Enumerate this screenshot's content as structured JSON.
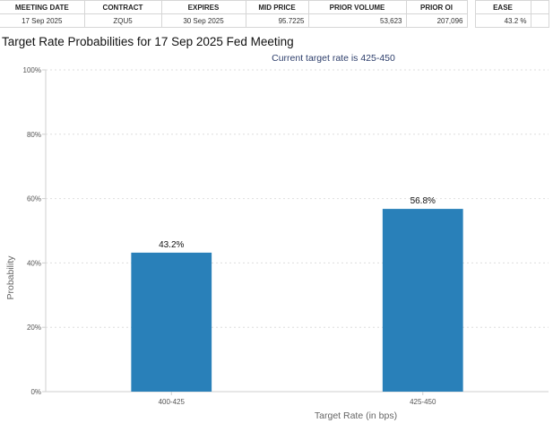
{
  "table": {
    "headers": [
      "MEETING DATE",
      "CONTRACT",
      "EXPIRES",
      "MID PRICE",
      "PRIOR VOLUME",
      "PRIOR OI",
      "EASE"
    ],
    "row": {
      "meeting_date": "17 Sep 2025",
      "contract": "ZQU5",
      "expires": "30 Sep 2025",
      "mid_price": "95.7225",
      "prior_volume": "53,623",
      "prior_oi": "207,096",
      "ease": "43.2 %"
    }
  },
  "page_title": "Target Rate Probabilities for 17 Sep 2025 Fed Meeting",
  "chart_data": {
    "type": "bar",
    "subtitle": "Current target rate is 425-450",
    "xlabel": "Target Rate (in bps)",
    "ylabel": "Probability",
    "categories": [
      "400-425",
      "425-450"
    ],
    "values": [
      43.2,
      56.8
    ],
    "data_labels": [
      "43.2%",
      "56.8%"
    ],
    "ylim": [
      0,
      100
    ],
    "yticks": [
      0,
      20,
      40,
      60,
      80,
      100
    ],
    "ytick_labels": [
      "0%",
      "20%",
      "40%",
      "60%",
      "80%",
      "100%"
    ],
    "grid": true,
    "bar_color": "#2980b9"
  }
}
